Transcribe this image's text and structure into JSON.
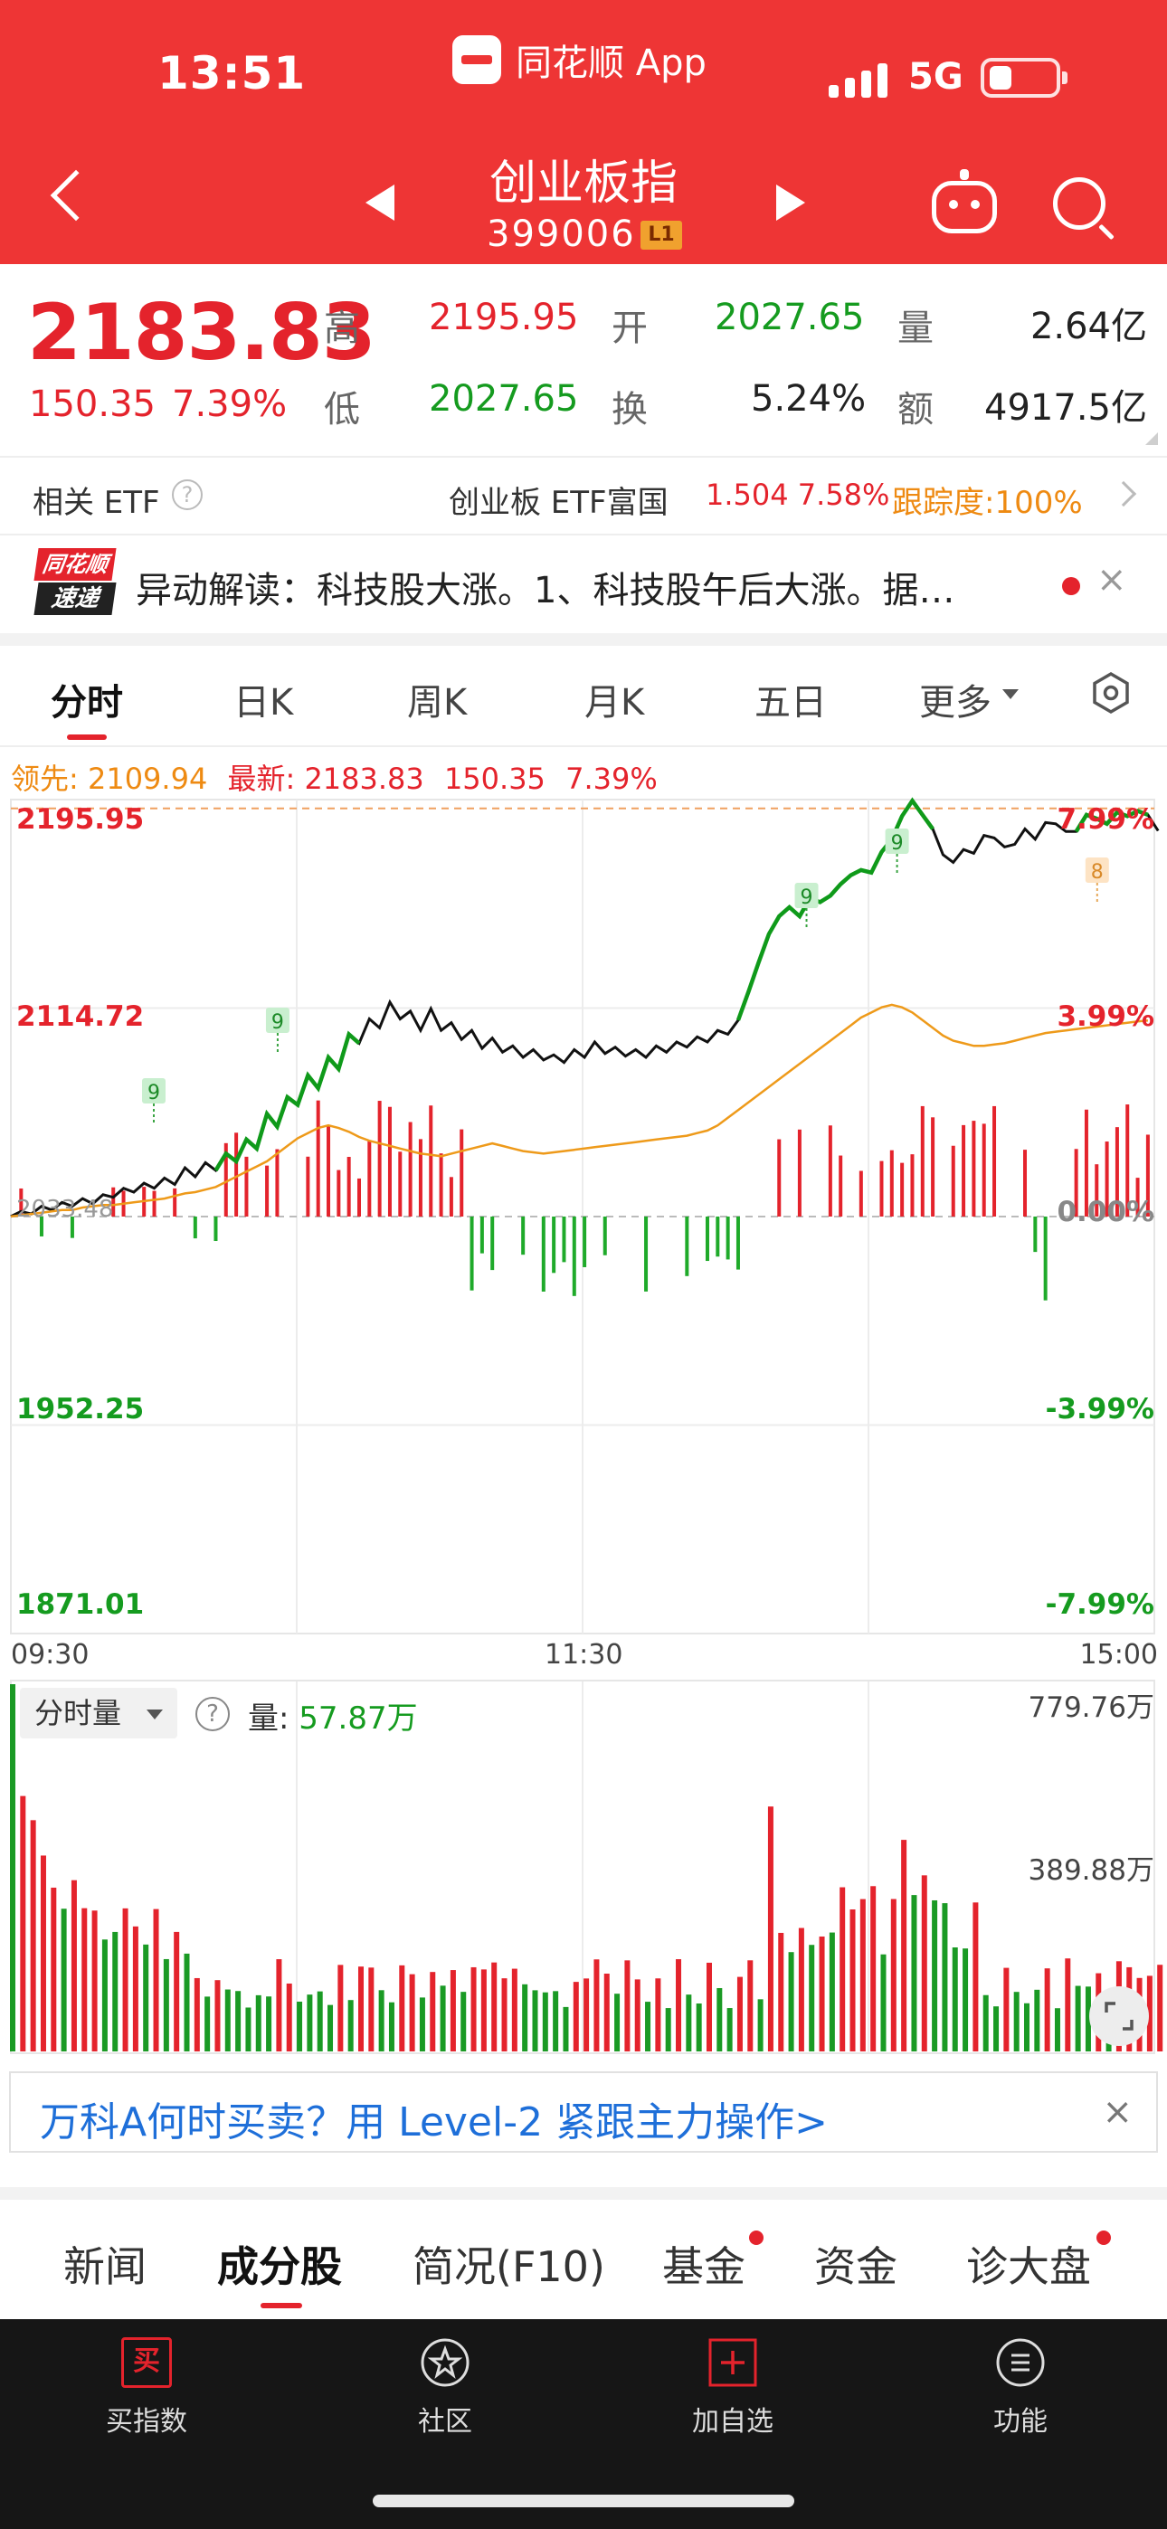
{
  "status_bar": {
    "time": "13:51",
    "app_name": "同花顺 App",
    "network": "5G"
  },
  "header": {
    "title": "创业板指",
    "code": "399006",
    "badge": "L1",
    "colors": {
      "background": "#ee3535"
    }
  },
  "quote": {
    "price": "2183.83",
    "change": "150.35",
    "change_pct": "7.39%",
    "high_label": "高",
    "high": "2195.95",
    "open_label": "开",
    "open": "2027.65",
    "volume_label": "量",
    "volume": "2.64亿",
    "low_label": "低",
    "low": "2027.65",
    "turnover_label": "换",
    "turnover": "5.24%",
    "amount_label": "额",
    "amount": "4917.5亿"
  },
  "etf": {
    "label": "相关 ETF",
    "name": "创业板 ETF富国",
    "price": "1.504",
    "pct": "7.58%",
    "tracking": "跟踪度:100%"
  },
  "news": {
    "logo_top": "同花顺",
    "logo_bottom": "速递",
    "text": "异动解读：科技股大涨。1、科技股午后大涨。据…",
    "close": "×"
  },
  "period_tabs": [
    {
      "label": "分时",
      "active": true
    },
    {
      "label": "日K"
    },
    {
      "label": "周K"
    },
    {
      "label": "月K"
    },
    {
      "label": "五日"
    },
    {
      "label": "更多"
    }
  ],
  "chart_tip": {
    "leader_label": "领先:",
    "leader": "2109.94",
    "latest_label": "最新:",
    "latest": "2183.83",
    "change": "150.35",
    "pct": "7.39%"
  },
  "chart_data": {
    "type": "line",
    "title": "",
    "y_left_ticks": [
      "2195.95",
      "2114.72",
      "1952.25",
      "1871.01"
    ],
    "y_left_range": [
      1871.01,
      2195.95
    ],
    "y_right_ticks": [
      "7.99%",
      "3.99%",
      "0.00%",
      "-3.99%",
      "-7.99%"
    ],
    "baseline_label": "2033.48",
    "baseline": 2033.48,
    "x_ticks": [
      "09:30",
      "11:30",
      "15:00"
    ],
    "marker_labels": [
      "9",
      "9",
      "9",
      "9",
      "8"
    ],
    "series": [
      {
        "name": "最新",
        "color": "#111111",
        "values": [
          2033.5,
          2035.5,
          2034.5,
          2037.5,
          2036,
          2039,
          2037.5,
          2040.5,
          2038.5,
          2042,
          2041,
          2044.5,
          2043,
          2046.5,
          2044.5,
          2048.5,
          2046,
          2052.5,
          2049,
          2054.5,
          2051.5,
          2058,
          2055,
          2063.5,
          2060,
          2073.5,
          2068.5,
          2080,
          2077,
          2088.5,
          2083.5,
          2095.5,
          2091,
          2104.5,
          2101,
          2110.5,
          2107,
          2117,
          2110.5,
          2113.5,
          2106,
          2114.5,
          2106,
          2109,
          2102.5,
          2106,
          2099,
          2103,
          2097.5,
          2100,
          2095.5,
          2098.5,
          2094.5,
          2096.5,
          2093.5,
          2098.5,
          2095.5,
          2101.5,
          2097,
          2099.5,
          2096,
          2098.5,
          2095.5,
          2100,
          2097.5,
          2101.5,
          2099.5,
          2103.5,
          2101.5,
          2106,
          2104.5,
          2110,
          2121,
          2132.5,
          2143.5,
          2150.5,
          2154,
          2150.5,
          2157.5,
          2156,
          2158.5,
          2163,
          2166.5,
          2168.5,
          2167.5,
          2175.5,
          2180.5,
          2189.5,
          2195.5,
          2190,
          2184.5,
          2174.5,
          2171.5,
          2176.5,
          2175,
          2182,
          2181,
          2177.5,
          2178.5,
          2184.5,
          2180.5,
          2187,
          2186.5,
          2183.5,
          2183.5,
          2190,
          2188.5,
          2186.5,
          2191,
          2189.5,
          2191.5,
          2190,
          2183.8
        ]
      },
      {
        "name": "领先",
        "color": "#ee9a1a",
        "values": [
          2033.5,
          2034,
          2034.5,
          2035,
          2035.5,
          2036,
          2036,
          2037,
          2037.5,
          2038,
          2038,
          2038.5,
          2039,
          2039.5,
          2040,
          2040.5,
          2041.5,
          2042.5,
          2043,
          2044,
          2045,
          2047,
          2049,
          2051,
          2053,
          2055,
          2058,
          2061,
          2064,
          2066,
          2068,
          2069,
          2068,
          2066.5,
          2064.5,
          2063,
          2062,
          2061,
          2060,
          2059,
          2058,
          2057.5,
          2057,
          2058,
          2059,
          2060,
          2061,
          2062,
          2061,
          2060,
          2059,
          2058.5,
          2058,
          2058.5,
          2059,
          2059.5,
          2060,
          2060.5,
          2061,
          2061.5,
          2062,
          2062.5,
          2063,
          2063.5,
          2064,
          2064.5,
          2065,
          2066,
          2067,
          2069,
          2072,
          2075,
          2078,
          2081,
          2084,
          2087,
          2090,
          2093,
          2096,
          2099,
          2102,
          2105,
          2108,
          2111,
          2113,
          2115,
          2116,
          2115,
          2113,
          2110,
          2107,
          2104,
          2102,
          2101,
          2100,
          2100,
          2100.5,
          2101,
          2102,
          2103,
          2104,
          2105,
          2105.5,
          2106,
          2106.5,
          2107,
          2107.5,
          2108,
          2108.5,
          2109,
          2109.5,
          2109.9
        ]
      }
    ]
  },
  "volume_panel": {
    "selector": "分时量",
    "label": "量:",
    "value": "57.87万",
    "axis_top": "779.76万",
    "axis_mid": "389.88万",
    "max": 779.76
  },
  "banner": {
    "text": "万科A何时买卖？用 Level-2 紧跟主力操作>",
    "close": "×"
  },
  "content_tabs": [
    {
      "label": "新闻"
    },
    {
      "label": "成分股",
      "active": true
    },
    {
      "label": "简况(F10)"
    },
    {
      "label": "基金",
      "dot": true
    },
    {
      "label": "资金"
    },
    {
      "label": "诊大盘",
      "dot": true
    }
  ],
  "toolbar": [
    {
      "label": "买指数",
      "icon": "buy-icon",
      "icon_char": "买"
    },
    {
      "label": "社区",
      "icon": "community-icon"
    },
    {
      "label": "加自选",
      "icon": "add-watchlist-icon"
    },
    {
      "label": "功能",
      "icon": "menu-icon"
    }
  ]
}
